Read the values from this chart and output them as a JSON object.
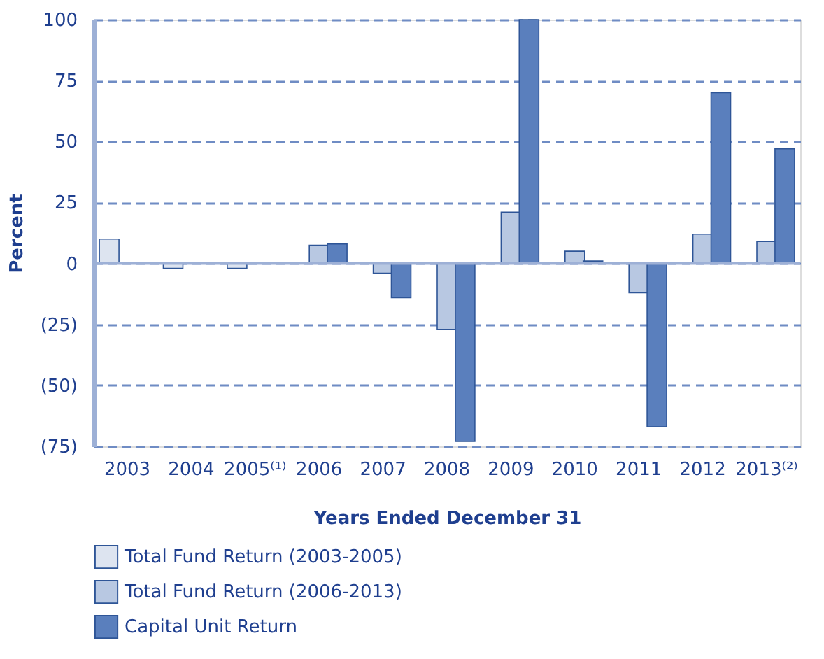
{
  "chart_data": {
    "type": "bar",
    "ylabel": "Percent",
    "xlabel": "Years Ended December 31",
    "categories": [
      "2003",
      "2004",
      "2005⁽¹⁾",
      "2006",
      "2007",
      "2008",
      "2009",
      "2010",
      "2011",
      "2012",
      "2013⁽²⁾"
    ],
    "series": [
      {
        "name": "Total Fund Return (2003-2005)",
        "color": "#dde4f0",
        "values": [
          10,
          -2,
          -2,
          null,
          null,
          null,
          null,
          null,
          null,
          null,
          null
        ]
      },
      {
        "name": "Total Fund Return (2006-2013)",
        "color": "#b8c8e2",
        "values": [
          null,
          null,
          null,
          7.5,
          -4,
          -27,
          21,
          5,
          -12,
          12,
          9
        ]
      },
      {
        "name": "Capital Unit Return",
        "color": "#5a7fbd",
        "values": [
          null,
          null,
          null,
          8,
          -14,
          -73,
          100,
          1,
          -67,
          70,
          47
        ]
      }
    ],
    "ylim": [
      -75,
      100
    ],
    "yticks": [
      {
        "value": -75,
        "label": "(75)"
      },
      {
        "value": -50,
        "label": "(50)"
      },
      {
        "value": -25,
        "label": "(25)"
      },
      0,
      25,
      50,
      75,
      100
    ],
    "ref_lines": [
      {
        "axis": "y",
        "value": 0,
        "color": "#9db0d6"
      }
    ],
    "grid": "y",
    "legend": "bottom left"
  }
}
